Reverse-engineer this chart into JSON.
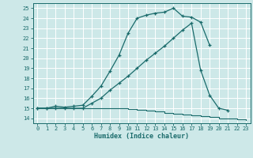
{
  "xlabel": "Humidex (Indice chaleur)",
  "bg_color": "#cde8e8",
  "grid_color": "#ffffff",
  "line_color": "#1a6b6b",
  "ylim": [
    13.5,
    25.5
  ],
  "xlim": [
    -0.5,
    23.5
  ],
  "yticks": [
    14,
    15,
    16,
    17,
    18,
    19,
    20,
    21,
    22,
    23,
    24,
    25
  ],
  "xticks": [
    0,
    1,
    2,
    3,
    4,
    5,
    6,
    7,
    8,
    9,
    10,
    11,
    12,
    13,
    14,
    15,
    16,
    17,
    18,
    19,
    20,
    21,
    22,
    23
  ],
  "line1_x": [
    0,
    1,
    2,
    3,
    4,
    5,
    6,
    7,
    8,
    9,
    10,
    11,
    12,
    13,
    14,
    15,
    16,
    17,
    18,
    19
  ],
  "line1_y": [
    15,
    15,
    15.2,
    15.1,
    15.2,
    15.3,
    16.2,
    17.2,
    18.7,
    20.3,
    22.5,
    24.0,
    24.3,
    24.5,
    24.6,
    25.0,
    24.2,
    24.1,
    23.6,
    21.3
  ],
  "line2_x": [
    0,
    1,
    2,
    3,
    4,
    5,
    6,
    7,
    8,
    9,
    10,
    11,
    12,
    13,
    14,
    15,
    16,
    17,
    18,
    19,
    20,
    21
  ],
  "line2_y": [
    15,
    15,
    15,
    15,
    15,
    15,
    15.5,
    16.0,
    16.8,
    17.5,
    18.2,
    19.0,
    19.8,
    20.5,
    21.2,
    22.0,
    22.8,
    23.5,
    18.8,
    16.3,
    15.0,
    14.8
  ],
  "line3_x": [
    0,
    1,
    2,
    3,
    4,
    5,
    6,
    7,
    8,
    9,
    10,
    11,
    12,
    13,
    14,
    15,
    16,
    17,
    18,
    19,
    20,
    21,
    22,
    23
  ],
  "line3_y": [
    15,
    15,
    15,
    15,
    15,
    15,
    15,
    15,
    15,
    15,
    14.9,
    14.85,
    14.75,
    14.65,
    14.55,
    14.45,
    14.35,
    14.3,
    14.2,
    14.1,
    14.0,
    14.0,
    13.9,
    13.8
  ]
}
